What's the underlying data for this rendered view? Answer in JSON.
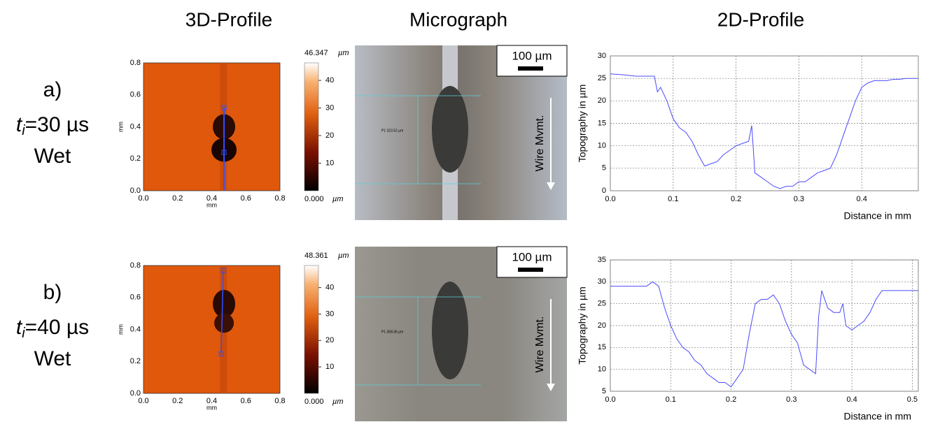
{
  "headers": [
    "3D-Profile",
    "Micrograph",
    "2D-Profile"
  ],
  "rows": [
    {
      "label": "a)",
      "time": {
        "var": "t",
        "sub": "i",
        "rest": "=30 µs"
      },
      "condition": "Wet",
      "profile3d": {
        "xticks": [
          "0.0",
          "0.2",
          "0.4",
          "0.6",
          "0.8"
        ],
        "yticks": [
          "0.0",
          "0.2",
          "0.4",
          "0.6",
          "0.8"
        ],
        "xlabel": "mm",
        "ylabel": "mm",
        "colorbar_max": "46.347",
        "colorbar_min": "0.000",
        "colorbar_unit": "µm",
        "colorbar_ticks": [
          10,
          20,
          30,
          40
        ]
      },
      "micrograph": {
        "scale": "100 µm",
        "direction": "Wire Mvmt.",
        "measure": "P1 323.52 µm"
      }
    },
    {
      "label": "b)",
      "time": {
        "var": "t",
        "sub": "i",
        "rest": "=40 µs"
      },
      "condition": "Wet",
      "profile3d": {
        "xticks": [
          "0.0",
          "0.2",
          "0.4",
          "0.6",
          "0.8"
        ],
        "yticks": [
          "0.0",
          "0.2",
          "0.4",
          "0.6",
          "0.8"
        ],
        "xlabel": "mm",
        "ylabel": "mm",
        "colorbar_max": "48.361",
        "colorbar_min": "0.000",
        "colorbar_unit": "µm",
        "colorbar_ticks": [
          10,
          20,
          30,
          40
        ]
      },
      "micrograph": {
        "scale": "100 µm",
        "direction": "Wire Mvmt.",
        "measure": "P1 368.36 µm"
      }
    }
  ],
  "chart_data": [
    {
      "type": "line",
      "xlabel": "Distance in mm",
      "ylabel": "Topography in µm",
      "x": [
        0,
        0.02,
        0.04,
        0.06,
        0.07,
        0.075,
        0.08,
        0.09,
        0.1,
        0.11,
        0.12,
        0.13,
        0.14,
        0.15,
        0.16,
        0.17,
        0.18,
        0.19,
        0.2,
        0.21,
        0.22,
        0.225,
        0.23,
        0.24,
        0.25,
        0.26,
        0.27,
        0.28,
        0.29,
        0.3,
        0.31,
        0.32,
        0.33,
        0.34,
        0.35,
        0.36,
        0.37,
        0.38,
        0.39,
        0.4,
        0.41,
        0.42,
        0.43,
        0.44,
        0.45,
        0.46,
        0.47,
        0.48,
        0.49
      ],
      "series": [
        {
          "color": "#4a4aff",
          "values": [
            26,
            25.8,
            25.5,
            25.5,
            25.5,
            22,
            23,
            20,
            16,
            14,
            13,
            11,
            8,
            5.5,
            6,
            6.5,
            8,
            9,
            10,
            10.5,
            11,
            14.5,
            4,
            3,
            2,
            1,
            0.5,
            1,
            1,
            2,
            2,
            3,
            4,
            4.5,
            5,
            8,
            12,
            16,
            20,
            23,
            24,
            24.5,
            24.5,
            24.5,
            24.8,
            24.8,
            25,
            25,
            25
          ]
        }
      ],
      "xlim": [
        0,
        0.49
      ],
      "ylim": [
        0,
        30
      ],
      "xticks": [
        {
          "value": 0,
          "label": "0.0"
        },
        0.1,
        0.2,
        0.3,
        0.4
      ],
      "yticks": [
        0,
        5,
        10,
        15,
        20,
        25,
        30
      ],
      "grid": true
    },
    {
      "type": "line",
      "xlabel": "Distance in mm",
      "ylabel": "Topography in µm",
      "x": [
        0,
        0.02,
        0.04,
        0.06,
        0.07,
        0.08,
        0.09,
        0.1,
        0.11,
        0.12,
        0.13,
        0.14,
        0.15,
        0.16,
        0.17,
        0.18,
        0.19,
        0.2,
        0.21,
        0.22,
        0.23,
        0.24,
        0.25,
        0.26,
        0.27,
        0.28,
        0.29,
        0.3,
        0.31,
        0.32,
        0.33,
        0.34,
        0.345,
        0.35,
        0.36,
        0.37,
        0.38,
        0.385,
        0.39,
        0.4,
        0.41,
        0.42,
        0.43,
        0.44,
        0.45,
        0.46,
        0.47,
        0.48,
        0.49,
        0.5,
        0.51
      ],
      "series": [
        {
          "color": "#4a4aff",
          "values": [
            29,
            29,
            29,
            29,
            30,
            29,
            24,
            20,
            17,
            15,
            14,
            12,
            11,
            9,
            8,
            7,
            7,
            6,
            8,
            10,
            18,
            25,
            26,
            26,
            27,
            25,
            21,
            18,
            16,
            11,
            10,
            9,
            22,
            28,
            24,
            23,
            23,
            25,
            20,
            19,
            20,
            21,
            23,
            26,
            28,
            28,
            28,
            28,
            28,
            28,
            28
          ]
        }
      ],
      "xlim": [
        0,
        0.51
      ],
      "ylim": [
        5,
        35
      ],
      "xticks": [
        {
          "value": 0,
          "label": "0.0"
        },
        0.1,
        0.2,
        0.3,
        0.4,
        0.5
      ],
      "yticks": [
        5,
        10,
        15,
        20,
        25,
        30,
        35
      ],
      "grid": true
    }
  ]
}
